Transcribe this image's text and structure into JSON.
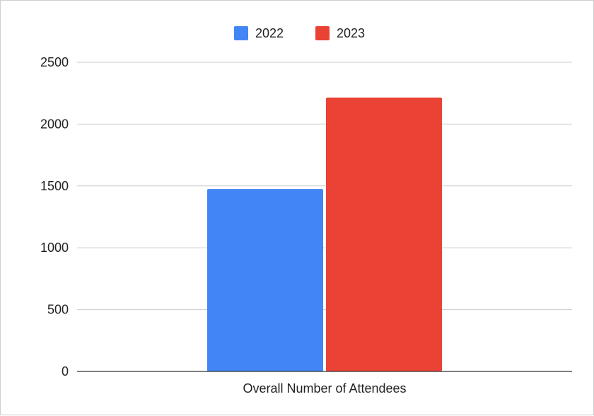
{
  "chart_data": {
    "type": "bar",
    "categories": [
      "Overall Number of Attendees"
    ],
    "series": [
      {
        "name": "2022",
        "values": [
          1475
        ],
        "color": "#4285f4"
      },
      {
        "name": "2023",
        "values": [
          2215
        ],
        "color": "#ea4335"
      }
    ],
    "ylim": [
      0,
      2500
    ],
    "yticks": [
      "0",
      "500",
      "1000",
      "1500",
      "2000",
      "2500"
    ],
    "grid": true,
    "legend_position": "top-center"
  }
}
